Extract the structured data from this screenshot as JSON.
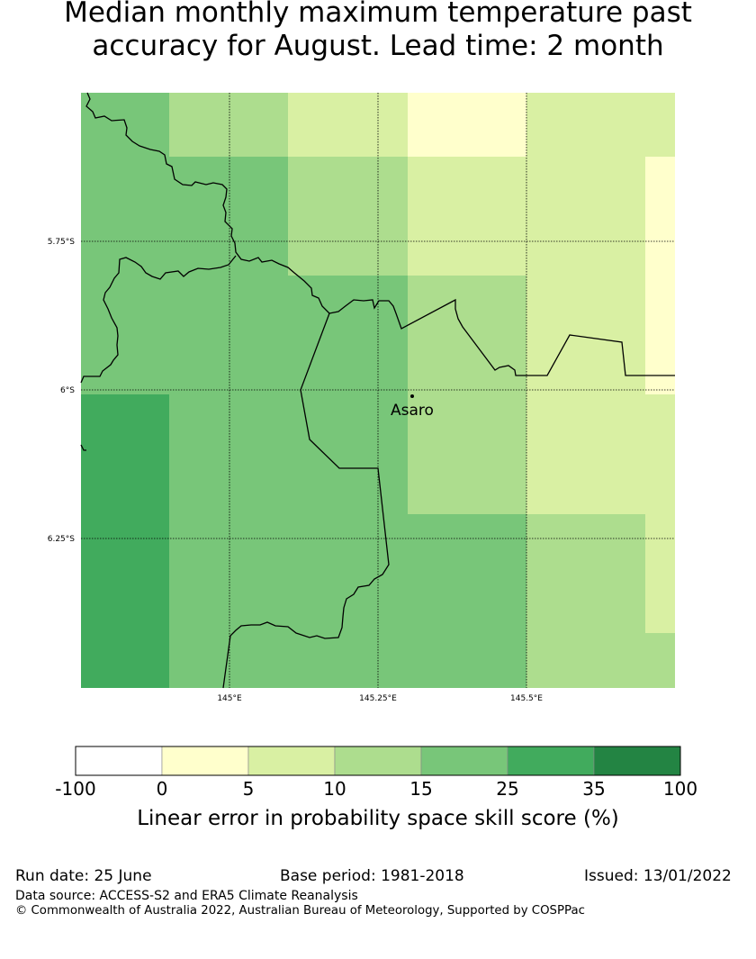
{
  "title_line1": "Median monthly maximum temperature past",
  "title_line2": "accuracy for August. Lead time: 2 month",
  "map": {
    "lon_ticks": [
      "145°E",
      "145.25°E",
      "145.5°E"
    ],
    "lat_ticks": [
      "5.75°S",
      "6°S",
      "6.25°S"
    ],
    "place_label": "Asaro",
    "colors": {
      "0_5": "#ffffcc",
      "5_10": "#d9f0a3",
      "10_15": "#addd8e",
      "15_25": "#78c679",
      "25_35": "#41ab5d",
      "35_100": "#238443"
    }
  },
  "colorbar": {
    "ticks": [
      "-100",
      "0",
      "5",
      "10",
      "15",
      "25",
      "35",
      "100"
    ],
    "colors": [
      "#ffffff",
      "#ffffcc",
      "#d9f0a3",
      "#addd8e",
      "#78c679",
      "#41ab5d",
      "#238443"
    ],
    "label": "Linear error in probability space skill score (%)"
  },
  "footer": {
    "run_date": "Run date: 25 June",
    "base_period": "Base period: 1981-2018",
    "issued": "Issued: 13/01/2022",
    "data_source": "Data source: ACCESS-S2 and ERA5 Climate Reanalysis",
    "copyright": "© Commonwealth of Australia 2022, Australian Bureau of Meteorology, Supported by COSPPac"
  }
}
